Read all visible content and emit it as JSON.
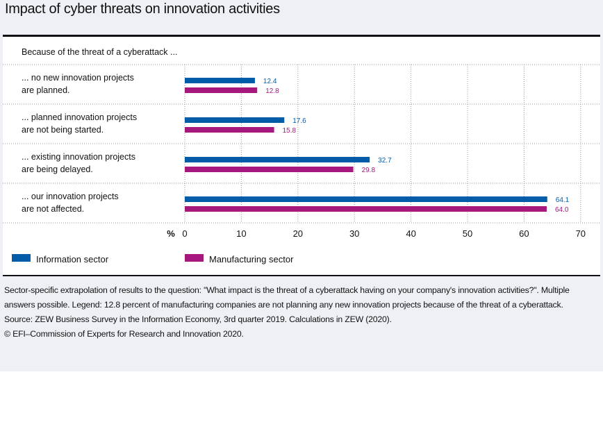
{
  "title": "Impact of cyber threats on innovation activities",
  "chart_data": {
    "type": "bar",
    "orientation": "horizontal",
    "subtitle": "Because of the threat of a cyberattack ...",
    "categories": [
      [
        "... no new innovation projects",
        "are planned."
      ],
      [
        "... planned innovation projects",
        "are not being started."
      ],
      [
        "... existing innovation projects",
        "are being delayed."
      ],
      [
        "... our innovation projects",
        "are not affected."
      ]
    ],
    "series": [
      {
        "name": "Information sector",
        "color": "#005ca9",
        "values": [
          12.4,
          17.6,
          32.7,
          64.1
        ],
        "labels": [
          "12.4",
          "17.6",
          "32.7",
          "64.1"
        ]
      },
      {
        "name": "Manufacturing sector",
        "color": "#a6187e",
        "values": [
          12.8,
          15.8,
          29.8,
          64.0
        ],
        "labels": [
          "12.8",
          "15.8",
          "29.8",
          "64.0"
        ]
      }
    ],
    "xlabel": "%",
    "xlim": [
      0,
      70
    ],
    "xticks": [
      "0",
      "10",
      "20",
      "30",
      "40",
      "50",
      "60",
      "70"
    ],
    "grid": true,
    "legend": "bottom-left"
  },
  "footnote": {
    "note": "Sector-specific extrapolation of results to the question: \"What impact is the threat of a cyberattack having on your company's innovation activities?\". Multiple answers possible. Legend: 12.8 percent of manufacturing companies are not planning any new innovation projects because of the threat of a cyberattack.",
    "source": "Source: ZEW Business Survey in the Information Economy, 3rd quarter 2019. Calculations in ZEW (2020).",
    "copyright": "© EFI–Commission of Experts for Research and Innovation 2020."
  }
}
